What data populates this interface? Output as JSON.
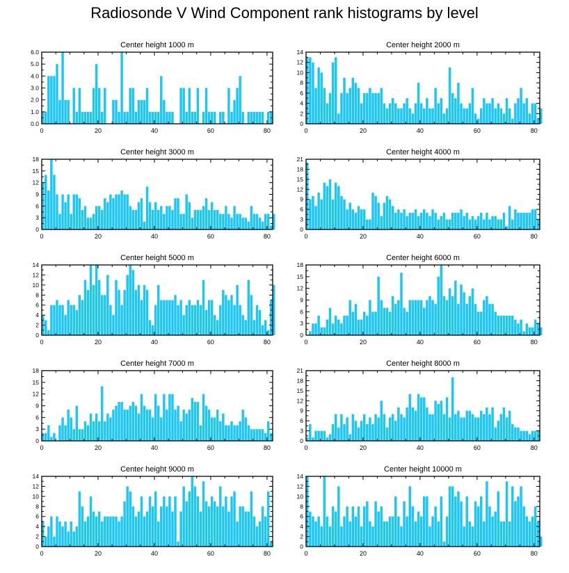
{
  "title": "Radiosonde V Wind Component rank histograms by level",
  "colors": {
    "bar": "#1ec6f5",
    "bar_edge": "#ffffff",
    "axis": "#000000"
  },
  "chart_data": [
    {
      "type": "bar",
      "title": "Center height 1000 m",
      "xlim": [
        0,
        82
      ],
      "ylim": [
        0,
        6
      ],
      "xticks": [
        0,
        20,
        40,
        60,
        80
      ],
      "yticks": [
        0,
        1,
        2,
        3,
        4,
        5,
        6
      ],
      "ytick_labels": [
        "0.0",
        "1.0",
        "2.0",
        "3.0",
        "4.0",
        "5.0",
        "6.0"
      ],
      "values": [
        1,
        1,
        4,
        4,
        4,
        5,
        2,
        6,
        2,
        2,
        0,
        3,
        1,
        3,
        1,
        1,
        1,
        1,
        3,
        5,
        3,
        1,
        3,
        0,
        0,
        2,
        2,
        1,
        6,
        1,
        1,
        3,
        3,
        1,
        2,
        2,
        2,
        3,
        1,
        1,
        1,
        1,
        4,
        2,
        1,
        1,
        1,
        0,
        0,
        3,
        3,
        1,
        3,
        1,
        1,
        3,
        0,
        1,
        3,
        1,
        1,
        1,
        0,
        1,
        1,
        0,
        3,
        1,
        2,
        3,
        4,
        1,
        0,
        1,
        1,
        1,
        1,
        1,
        1,
        0,
        1,
        1
      ]
    },
    {
      "type": "bar",
      "title": "Center height 2000 m",
      "xlim": [
        0,
        82
      ],
      "ylim": [
        0,
        14
      ],
      "xticks": [
        0,
        20,
        40,
        60,
        80
      ],
      "yticks": [
        0,
        2,
        4,
        6,
        8,
        10,
        12,
        14
      ],
      "ytick_labels": [
        "0",
        "2",
        "4",
        "6",
        "8",
        "10",
        "12",
        "14"
      ],
      "values": [
        13,
        13,
        12,
        7,
        11,
        10,
        7,
        4,
        6,
        12,
        13,
        2,
        6,
        9,
        6,
        7,
        9,
        8,
        7,
        4,
        6,
        6,
        7,
        6,
        6,
        6,
        7,
        4,
        3,
        4,
        5,
        4,
        3,
        3,
        4,
        5,
        3,
        2,
        4,
        8,
        4,
        3,
        5,
        3,
        3,
        7,
        4,
        5,
        2,
        3,
        11,
        6,
        5,
        8,
        4,
        3,
        3,
        4,
        7,
        2,
        1,
        3,
        5,
        4,
        4,
        5,
        3,
        4,
        3,
        2,
        5,
        3,
        1,
        4,
        5,
        7,
        4,
        5,
        2,
        4,
        4,
        1,
        3
      ]
    },
    {
      "type": "bar",
      "title": "Center height 3000 m",
      "xlim": [
        0,
        82
      ],
      "ylim": [
        0,
        18
      ],
      "xticks": [
        0,
        20,
        40,
        60,
        80
      ],
      "yticks": [
        0,
        3,
        6,
        9,
        12,
        15,
        18
      ],
      "ytick_labels": [
        "0",
        "3",
        "6",
        "9",
        "12",
        "15",
        "18"
      ],
      "values": [
        12,
        14,
        10,
        18,
        14,
        9,
        4,
        9,
        7,
        9,
        4,
        9,
        9,
        8,
        5,
        6,
        3,
        3,
        4,
        6,
        6,
        5,
        8,
        7,
        9,
        8,
        9,
        9,
        10,
        9,
        9,
        6,
        5,
        5,
        7,
        8,
        2,
        11,
        7,
        5,
        7,
        5,
        6,
        4,
        6,
        6,
        5,
        8,
        8,
        4,
        4,
        9,
        7,
        3,
        5,
        5,
        5,
        6,
        8,
        5,
        7,
        5,
        5,
        4,
        4,
        6,
        4,
        3,
        6,
        4,
        4,
        3,
        3,
        2,
        6,
        4,
        4,
        3,
        2,
        4,
        4,
        1,
        4
      ]
    },
    {
      "type": "bar",
      "title": "Center height 4000 m",
      "xlim": [
        0,
        82
      ],
      "ylim": [
        0,
        21
      ],
      "xticks": [
        0,
        20,
        40,
        60,
        80
      ],
      "yticks": [
        0,
        3,
        6,
        9,
        12,
        15,
        18,
        21
      ],
      "ytick_labels": [
        "0",
        "3",
        "6",
        "9",
        "12",
        "15",
        "18",
        "21"
      ],
      "values": [
        20,
        9,
        10,
        7,
        11,
        9,
        14,
        13,
        15,
        9,
        14,
        13,
        10,
        9,
        6,
        8,
        6,
        5,
        7,
        6,
        6,
        3,
        3,
        11,
        10,
        8,
        4,
        8,
        10,
        9,
        7,
        5,
        6,
        5,
        6,
        4,
        5,
        5,
        6,
        4,
        5,
        6,
        5,
        4,
        6,
        5,
        3,
        4,
        5,
        3,
        3,
        5,
        5,
        5,
        6,
        4,
        5,
        3,
        4,
        3,
        4,
        5,
        3,
        5,
        3,
        4,
        4,
        3,
        3,
        5,
        1,
        7,
        3,
        6,
        5,
        5,
        5,
        5,
        5,
        6,
        6,
        3
      ]
    },
    {
      "type": "bar",
      "title": "Center height 5000 m",
      "xlim": [
        0,
        82
      ],
      "ylim": [
        0,
        14
      ],
      "xticks": [
        0,
        20,
        40,
        60,
        80
      ],
      "yticks": [
        0,
        2,
        4,
        6,
        8,
        10,
        12,
        14
      ],
      "ytick_labels": [
        "0",
        "2",
        "4",
        "6",
        "8",
        "10",
        "12",
        "14"
      ],
      "values": [
        4,
        3,
        1,
        6,
        6,
        7,
        6,
        6,
        4,
        7,
        6,
        6,
        5,
        8,
        7,
        11,
        9,
        14,
        10,
        14,
        11,
        8,
        8,
        12,
        6,
        4,
        11,
        9,
        6,
        9,
        12,
        14,
        13,
        9,
        10,
        7,
        10,
        9,
        3,
        2,
        6,
        10,
        7,
        7,
        7,
        7,
        7,
        8,
        6,
        7,
        4,
        6,
        7,
        6,
        6,
        7,
        6,
        11,
        5,
        7,
        7,
        4,
        3,
        6,
        9,
        8,
        7,
        8,
        6,
        10,
        6,
        4,
        3,
        11,
        8,
        3,
        6,
        5,
        2,
        3,
        1,
        7,
        10
      ]
    },
    {
      "type": "bar",
      "title": "Center height 6000 m",
      "xlim": [
        0,
        82
      ],
      "ylim": [
        0,
        18
      ],
      "xticks": [
        0,
        20,
        40,
        60,
        80
      ],
      "yticks": [
        0,
        3,
        6,
        9,
        12,
        15,
        18
      ],
      "ytick_labels": [
        "0",
        "3",
        "6",
        "9",
        "12",
        "15",
        "18"
      ],
      "values": [
        0,
        1,
        3,
        3,
        5,
        2,
        2,
        4,
        7,
        3,
        5,
        4,
        3,
        5,
        5,
        9,
        6,
        8,
        4,
        4,
        6,
        5,
        9,
        6,
        6,
        15,
        9,
        7,
        7,
        6,
        10,
        8,
        9,
        16,
        7,
        6,
        9,
        9,
        9,
        9,
        9,
        7,
        9,
        10,
        9,
        8,
        15,
        18,
        10,
        9,
        12,
        10,
        14,
        8,
        13,
        11,
        8,
        10,
        12,
        8,
        6,
        6,
        9,
        10,
        8,
        8,
        6,
        5,
        5,
        5,
        5,
        5,
        5,
        4,
        3,
        4,
        1,
        3,
        2,
        2,
        4,
        3,
        2
      ]
    },
    {
      "type": "bar",
      "title": "Center height 7000 m",
      "xlim": [
        0,
        82
      ],
      "ylim": [
        0,
        18
      ],
      "xticks": [
        0,
        20,
        40,
        60,
        80
      ],
      "yticks": [
        0,
        3,
        6,
        9,
        12,
        15,
        18
      ],
      "ytick_labels": [
        "0",
        "3",
        "6",
        "9",
        "12",
        "15",
        "18"
      ],
      "values": [
        2,
        2,
        4,
        1,
        2,
        0,
        4,
        6,
        4,
        8,
        6,
        3,
        9,
        3,
        3,
        5,
        4,
        7,
        5,
        7,
        5,
        14,
        5,
        7,
        6,
        8,
        9,
        10,
        10,
        8,
        8,
        9,
        10,
        9,
        7,
        12,
        9,
        8,
        8,
        6,
        12,
        9,
        6,
        12,
        8,
        12,
        12,
        8,
        9,
        5,
        8,
        7,
        8,
        11,
        10,
        10,
        4,
        12,
        9,
        8,
        6,
        6,
        8,
        5,
        7,
        4,
        4,
        5,
        4,
        4,
        5,
        8,
        6,
        4,
        3,
        3,
        3,
        3,
        3,
        2,
        5,
        2
      ]
    },
    {
      "type": "bar",
      "title": "Center height 8000 m",
      "xlim": [
        0,
        82
      ],
      "ylim": [
        0,
        21
      ],
      "xticks": [
        0,
        20,
        40,
        60,
        80
      ],
      "yticks": [
        0,
        3,
        6,
        9,
        12,
        15,
        18,
        21
      ],
      "ytick_labels": [
        "0",
        "3",
        "6",
        "9",
        "12",
        "15",
        "18",
        "21"
      ],
      "values": [
        1,
        5,
        1,
        3,
        3,
        3,
        3,
        1,
        2,
        5,
        8,
        4,
        8,
        5,
        7,
        2,
        8,
        6,
        4,
        6,
        8,
        5,
        7,
        5,
        8,
        7,
        12,
        8,
        4,
        7,
        8,
        6,
        10,
        8,
        7,
        10,
        14,
        10,
        9,
        14,
        13,
        13,
        10,
        8,
        8,
        12,
        11,
        12,
        8,
        13,
        7,
        19,
        8,
        9,
        7,
        7,
        9,
        9,
        8,
        7,
        7,
        9,
        8,
        10,
        8,
        10,
        4,
        6,
        8,
        10,
        7,
        9,
        5,
        4,
        4,
        3,
        3,
        3,
        2,
        3,
        3,
        3
      ]
    },
    {
      "type": "bar",
      "title": "Center height 9000 m",
      "xlim": [
        0,
        82
      ],
      "ylim": [
        0,
        14
      ],
      "xticks": [
        0,
        20,
        40,
        60,
        80
      ],
      "yticks": [
        0,
        2,
        4,
        6,
        8,
        10,
        12,
        14
      ],
      "ytick_labels": [
        "0",
        "2",
        "4",
        "6",
        "8",
        "10",
        "12",
        "14"
      ],
      "values": [
        5,
        2,
        4,
        6,
        2,
        6,
        5,
        4,
        5,
        3,
        5,
        3,
        4,
        11,
        8,
        5,
        6,
        10,
        7,
        6,
        7,
        5,
        6,
        6,
        6,
        6,
        6,
        5,
        6,
        9,
        12,
        11,
        8,
        6,
        7,
        10,
        6,
        7,
        10,
        8,
        11,
        5,
        8,
        10,
        8,
        10,
        7,
        10,
        1,
        7,
        12,
        9,
        11,
        14,
        12,
        10,
        7,
        13,
        9,
        8,
        10,
        9,
        8,
        12,
        8,
        10,
        7,
        10,
        11,
        5,
        8,
        8,
        7,
        7,
        11,
        6,
        4,
        5,
        8,
        6,
        11,
        1
      ]
    },
    {
      "type": "bar",
      "title": "Center height 10000 m",
      "xlim": [
        0,
        82
      ],
      "ylim": [
        0,
        14
      ],
      "xticks": [
        0,
        20,
        40,
        60,
        80
      ],
      "yticks": [
        0,
        2,
        4,
        6,
        8,
        10,
        12,
        14
      ],
      "ytick_labels": [
        "0",
        "2",
        "4",
        "6",
        "8",
        "10",
        "12",
        "14"
      ],
      "values": [
        14,
        7,
        6,
        5,
        6,
        4,
        14,
        6,
        4,
        8,
        7,
        12,
        4,
        6,
        8,
        5,
        8,
        6,
        8,
        4,
        8,
        9,
        5,
        4,
        9,
        7,
        8,
        5,
        5,
        6,
        6,
        10,
        6,
        4,
        9,
        6,
        12,
        8,
        5,
        7,
        6,
        10,
        10,
        4,
        6,
        8,
        5,
        10,
        1,
        6,
        12,
        12,
        10,
        11,
        9,
        4,
        10,
        5,
        4,
        9,
        8,
        10,
        5,
        13,
        8,
        6,
        7,
        11,
        5,
        5,
        13,
        5,
        12,
        9,
        10,
        12,
        8,
        6,
        5,
        6,
        8,
        5,
        2
      ]
    }
  ]
}
